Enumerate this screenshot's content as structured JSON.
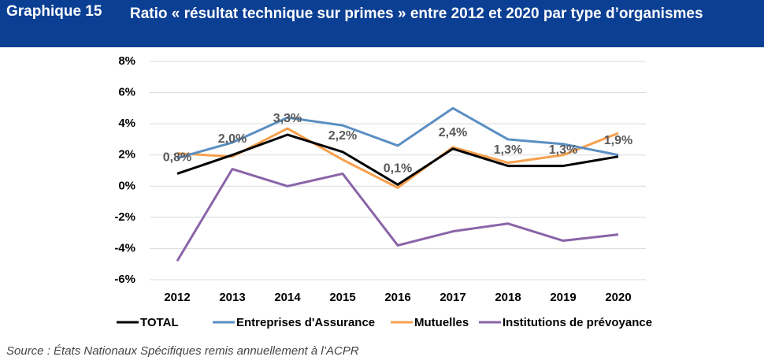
{
  "header": {
    "label": "Graphique 15",
    "title": "Ratio « résultat technique sur primes » entre 2012 et 2020 par type d’organismes"
  },
  "chart_data": {
    "type": "line",
    "categories": [
      "2012",
      "2013",
      "2014",
      "2015",
      "2016",
      "2017",
      "2018",
      "2019",
      "2020"
    ],
    "series": [
      {
        "name": "TOTAL",
        "color": "#000000",
        "values": [
          0.8,
          2.0,
          3.3,
          2.2,
          0.1,
          2.4,
          1.3,
          1.3,
          1.9
        ],
        "value_labels": [
          "0,8%",
          "2,0%",
          "3,3%",
          "2,2%",
          "0,1%",
          "2,4%",
          "1,3%",
          "1,3%",
          "1,9%"
        ]
      },
      {
        "name": "Entreprises d'Assurance",
        "color": "#5b8fc2",
        "values": [
          1.8,
          2.8,
          4.4,
          3.9,
          2.6,
          5.0,
          3.0,
          2.7,
          2.0
        ]
      },
      {
        "name": "Mutuelles",
        "color": "#f6a04d",
        "values": [
          2.1,
          1.9,
          3.7,
          1.7,
          -0.1,
          2.5,
          1.5,
          2.0,
          3.4
        ]
      },
      {
        "name": "Institutions de prévoyance",
        "color": "#8a64a8",
        "values": [
          -4.8,
          1.1,
          0.0,
          0.8,
          -3.8,
          -2.9,
          -2.4,
          -3.5,
          -3.1
        ]
      }
    ],
    "ylim": [
      -6,
      8
    ],
    "yticks": [
      {
        "value": -6,
        "label": "-6%"
      },
      {
        "value": -4,
        "label": "-4%"
      },
      {
        "value": -2,
        "label": "-2%"
      },
      {
        "value": 0,
        "label": "0%"
      },
      {
        "value": 2,
        "label": "2%"
      },
      {
        "value": 4,
        "label": "4%"
      },
      {
        "value": 6,
        "label": "6%"
      },
      {
        "value": 8,
        "label": "8%"
      }
    ],
    "grid": true
  },
  "source": "Source : États Nationaux Spécifiques remis annuellement à l’ACPR"
}
